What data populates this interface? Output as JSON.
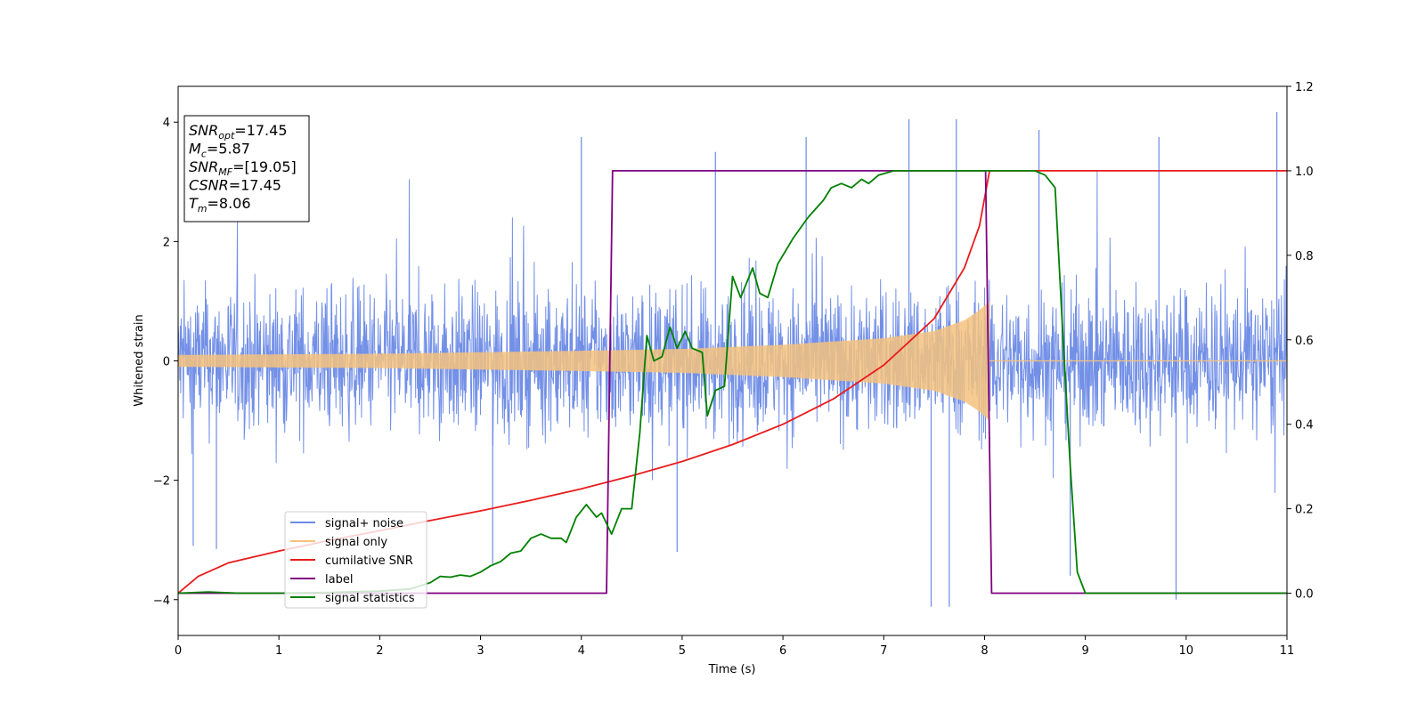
{
  "chart_data": {
    "type": "line",
    "xlabel": "Time (s)",
    "ylabel": "Whitened strain",
    "xlim": [
      0,
      11
    ],
    "ylim": [
      -4.6,
      4.6
    ],
    "ylim_right": [
      -0.1,
      1.2
    ],
    "x_ticks": [
      "0",
      "1",
      "2",
      "3",
      "4",
      "5",
      "6",
      "7",
      "8",
      "9",
      "10",
      "11"
    ],
    "y_ticks": [
      "−4",
      "−2",
      "0",
      "2",
      "4"
    ],
    "y_ticks_right": [
      "0.0",
      "0.2",
      "0.4",
      "0.6",
      "0.8",
      "1.0",
      "1.2"
    ],
    "grid": false,
    "legend_position": "lower-left",
    "annotations": [
      {
        "base": "SNR",
        "sub": "opt",
        "value": "=17.45"
      },
      {
        "base": "M",
        "sub": "c",
        "value": "=5.87"
      },
      {
        "base": "SNR",
        "sub": "MF",
        "value": "=[19.05]"
      },
      {
        "base": "CSNR",
        "sub": "",
        "value": "=17.45"
      },
      {
        "base": "T",
        "sub": "m",
        "value": "=8.06"
      }
    ],
    "series": [
      {
        "name": "signal+ noise",
        "color": "#6c8ae6",
        "axis": "left",
        "description": "noisy whitened strain, roughly ±1.7 envelope with spikes to ±4",
        "spikes": [
          {
            "x": 4.0,
            "y": 3.75
          },
          {
            "x": 5.33,
            "y": 3.5
          },
          {
            "x": 6.23,
            "y": 3.75
          },
          {
            "x": 7.25,
            "y": 4.05
          },
          {
            "x": 7.72,
            "y": 4.05
          },
          {
            "x": 8.54,
            "y": 3.87
          },
          {
            "x": 9.73,
            "y": 3.75
          },
          {
            "x": 10.9,
            "y": 4.17
          },
          {
            "x": 7.47,
            "y": -4.12
          },
          {
            "x": 7.65,
            "y": -4.12
          },
          {
            "x": 9.9,
            "y": -4.0
          },
          {
            "x": 0.15,
            "y": -3.1
          },
          {
            "x": 0.38,
            "y": -3.15
          },
          {
            "x": 3.12,
            "y": -3.4
          },
          {
            "x": 4.95,
            "y": -3.2
          },
          {
            "x": 8.85,
            "y": -3.6
          }
        ]
      },
      {
        "name": "signal only",
        "color": "#f5c27e",
        "axis": "left",
        "description": "chirp oscillation growing from ±0.1 to about ±1 before merger at 8.06 s, then zero",
        "envelope": [
          {
            "x": 0,
            "y": 0.1
          },
          {
            "x": 2,
            "y": 0.12
          },
          {
            "x": 4,
            "y": 0.17
          },
          {
            "x": 5,
            "y": 0.2
          },
          {
            "x": 6,
            "y": 0.27
          },
          {
            "x": 7,
            "y": 0.38
          },
          {
            "x": 7.5,
            "y": 0.5
          },
          {
            "x": 7.8,
            "y": 0.68
          },
          {
            "x": 7.95,
            "y": 0.85
          },
          {
            "x": 8.05,
            "y": 1.0
          }
        ]
      },
      {
        "name": "cumilative SNR",
        "color": "#e81c1c",
        "axis": "right",
        "points": [
          {
            "x": 0,
            "y": 0.0
          },
          {
            "x": 0.2,
            "y": 0.04
          },
          {
            "x": 0.5,
            "y": 0.072
          },
          {
            "x": 1,
            "y": 0.1
          },
          {
            "x": 1.5,
            "y": 0.125
          },
          {
            "x": 2,
            "y": 0.148
          },
          {
            "x": 2.5,
            "y": 0.172
          },
          {
            "x": 3,
            "y": 0.195
          },
          {
            "x": 3.5,
            "y": 0.22
          },
          {
            "x": 4,
            "y": 0.247
          },
          {
            "x": 4.5,
            "y": 0.278
          },
          {
            "x": 5,
            "y": 0.312
          },
          {
            "x": 5.5,
            "y": 0.352
          },
          {
            "x": 6,
            "y": 0.4
          },
          {
            "x": 6.5,
            "y": 0.46
          },
          {
            "x": 7,
            "y": 0.54
          },
          {
            "x": 7.5,
            "y": 0.65
          },
          {
            "x": 7.8,
            "y": 0.77
          },
          {
            "x": 7.95,
            "y": 0.87
          },
          {
            "x": 8.05,
            "y": 1.0
          },
          {
            "x": 11,
            "y": 1.0
          }
        ]
      },
      {
        "name": "label",
        "color": "#800080",
        "axis": "right",
        "points": [
          {
            "x": 0,
            "y": 0.0
          },
          {
            "x": 4.25,
            "y": 0.0
          },
          {
            "x": 4.31,
            "y": 1.0
          },
          {
            "x": 8.01,
            "y": 1.0
          },
          {
            "x": 8.07,
            "y": 0.0
          },
          {
            "x": 11,
            "y": 0.0
          }
        ]
      },
      {
        "name": "signal statistics",
        "color": "#008000",
        "axis": "right",
        "points": [
          {
            "x": 0,
            "y": 0.0
          },
          {
            "x": 0.3,
            "y": 0.003
          },
          {
            "x": 0.6,
            "y": 0.0
          },
          {
            "x": 1.0,
            "y": 0.0
          },
          {
            "x": 1.5,
            "y": 0.002
          },
          {
            "x": 2.0,
            "y": 0.005
          },
          {
            "x": 2.3,
            "y": 0.01
          },
          {
            "x": 2.5,
            "y": 0.025
          },
          {
            "x": 2.6,
            "y": 0.04
          },
          {
            "x": 2.7,
            "y": 0.038
          },
          {
            "x": 2.8,
            "y": 0.043
          },
          {
            "x": 2.9,
            "y": 0.04
          },
          {
            "x": 3.0,
            "y": 0.05
          },
          {
            "x": 3.1,
            "y": 0.065
          },
          {
            "x": 3.2,
            "y": 0.075
          },
          {
            "x": 3.3,
            "y": 0.095
          },
          {
            "x": 3.4,
            "y": 0.1
          },
          {
            "x": 3.5,
            "y": 0.13
          },
          {
            "x": 3.6,
            "y": 0.14
          },
          {
            "x": 3.7,
            "y": 0.13
          },
          {
            "x": 3.8,
            "y": 0.13
          },
          {
            "x": 3.85,
            "y": 0.12
          },
          {
            "x": 3.95,
            "y": 0.18
          },
          {
            "x": 4.05,
            "y": 0.21
          },
          {
            "x": 4.15,
            "y": 0.18
          },
          {
            "x": 4.2,
            "y": 0.19
          },
          {
            "x": 4.3,
            "y": 0.14
          },
          {
            "x": 4.4,
            "y": 0.2
          },
          {
            "x": 4.5,
            "y": 0.2
          },
          {
            "x": 4.58,
            "y": 0.38
          },
          {
            "x": 4.65,
            "y": 0.61
          },
          {
            "x": 4.72,
            "y": 0.55
          },
          {
            "x": 4.8,
            "y": 0.56
          },
          {
            "x": 4.88,
            "y": 0.63
          },
          {
            "x": 4.95,
            "y": 0.58
          },
          {
            "x": 5.03,
            "y": 0.62
          },
          {
            "x": 5.1,
            "y": 0.58
          },
          {
            "x": 5.2,
            "y": 0.57
          },
          {
            "x": 5.25,
            "y": 0.42
          },
          {
            "x": 5.33,
            "y": 0.48
          },
          {
            "x": 5.42,
            "y": 0.49
          },
          {
            "x": 5.5,
            "y": 0.75
          },
          {
            "x": 5.58,
            "y": 0.7
          },
          {
            "x": 5.7,
            "y": 0.77
          },
          {
            "x": 5.77,
            "y": 0.71
          },
          {
            "x": 5.85,
            "y": 0.7
          },
          {
            "x": 5.95,
            "y": 0.78
          },
          {
            "x": 6.1,
            "y": 0.84
          },
          {
            "x": 6.25,
            "y": 0.89
          },
          {
            "x": 6.4,
            "y": 0.93
          },
          {
            "x": 6.48,
            "y": 0.96
          },
          {
            "x": 6.58,
            "y": 0.97
          },
          {
            "x": 6.68,
            "y": 0.96
          },
          {
            "x": 6.78,
            "y": 0.98
          },
          {
            "x": 6.85,
            "y": 0.97
          },
          {
            "x": 6.95,
            "y": 0.99
          },
          {
            "x": 7.1,
            "y": 1.0
          },
          {
            "x": 7.5,
            "y": 1.0
          },
          {
            "x": 8.0,
            "y": 1.0
          },
          {
            "x": 8.3,
            "y": 1.0
          },
          {
            "x": 8.5,
            "y": 1.0
          },
          {
            "x": 8.6,
            "y": 0.99
          },
          {
            "x": 8.7,
            "y": 0.96
          },
          {
            "x": 8.78,
            "y": 0.6
          },
          {
            "x": 8.85,
            "y": 0.3
          },
          {
            "x": 8.92,
            "y": 0.05
          },
          {
            "x": 9.0,
            "y": 0.0
          },
          {
            "x": 11,
            "y": 0.0
          }
        ]
      }
    ]
  }
}
